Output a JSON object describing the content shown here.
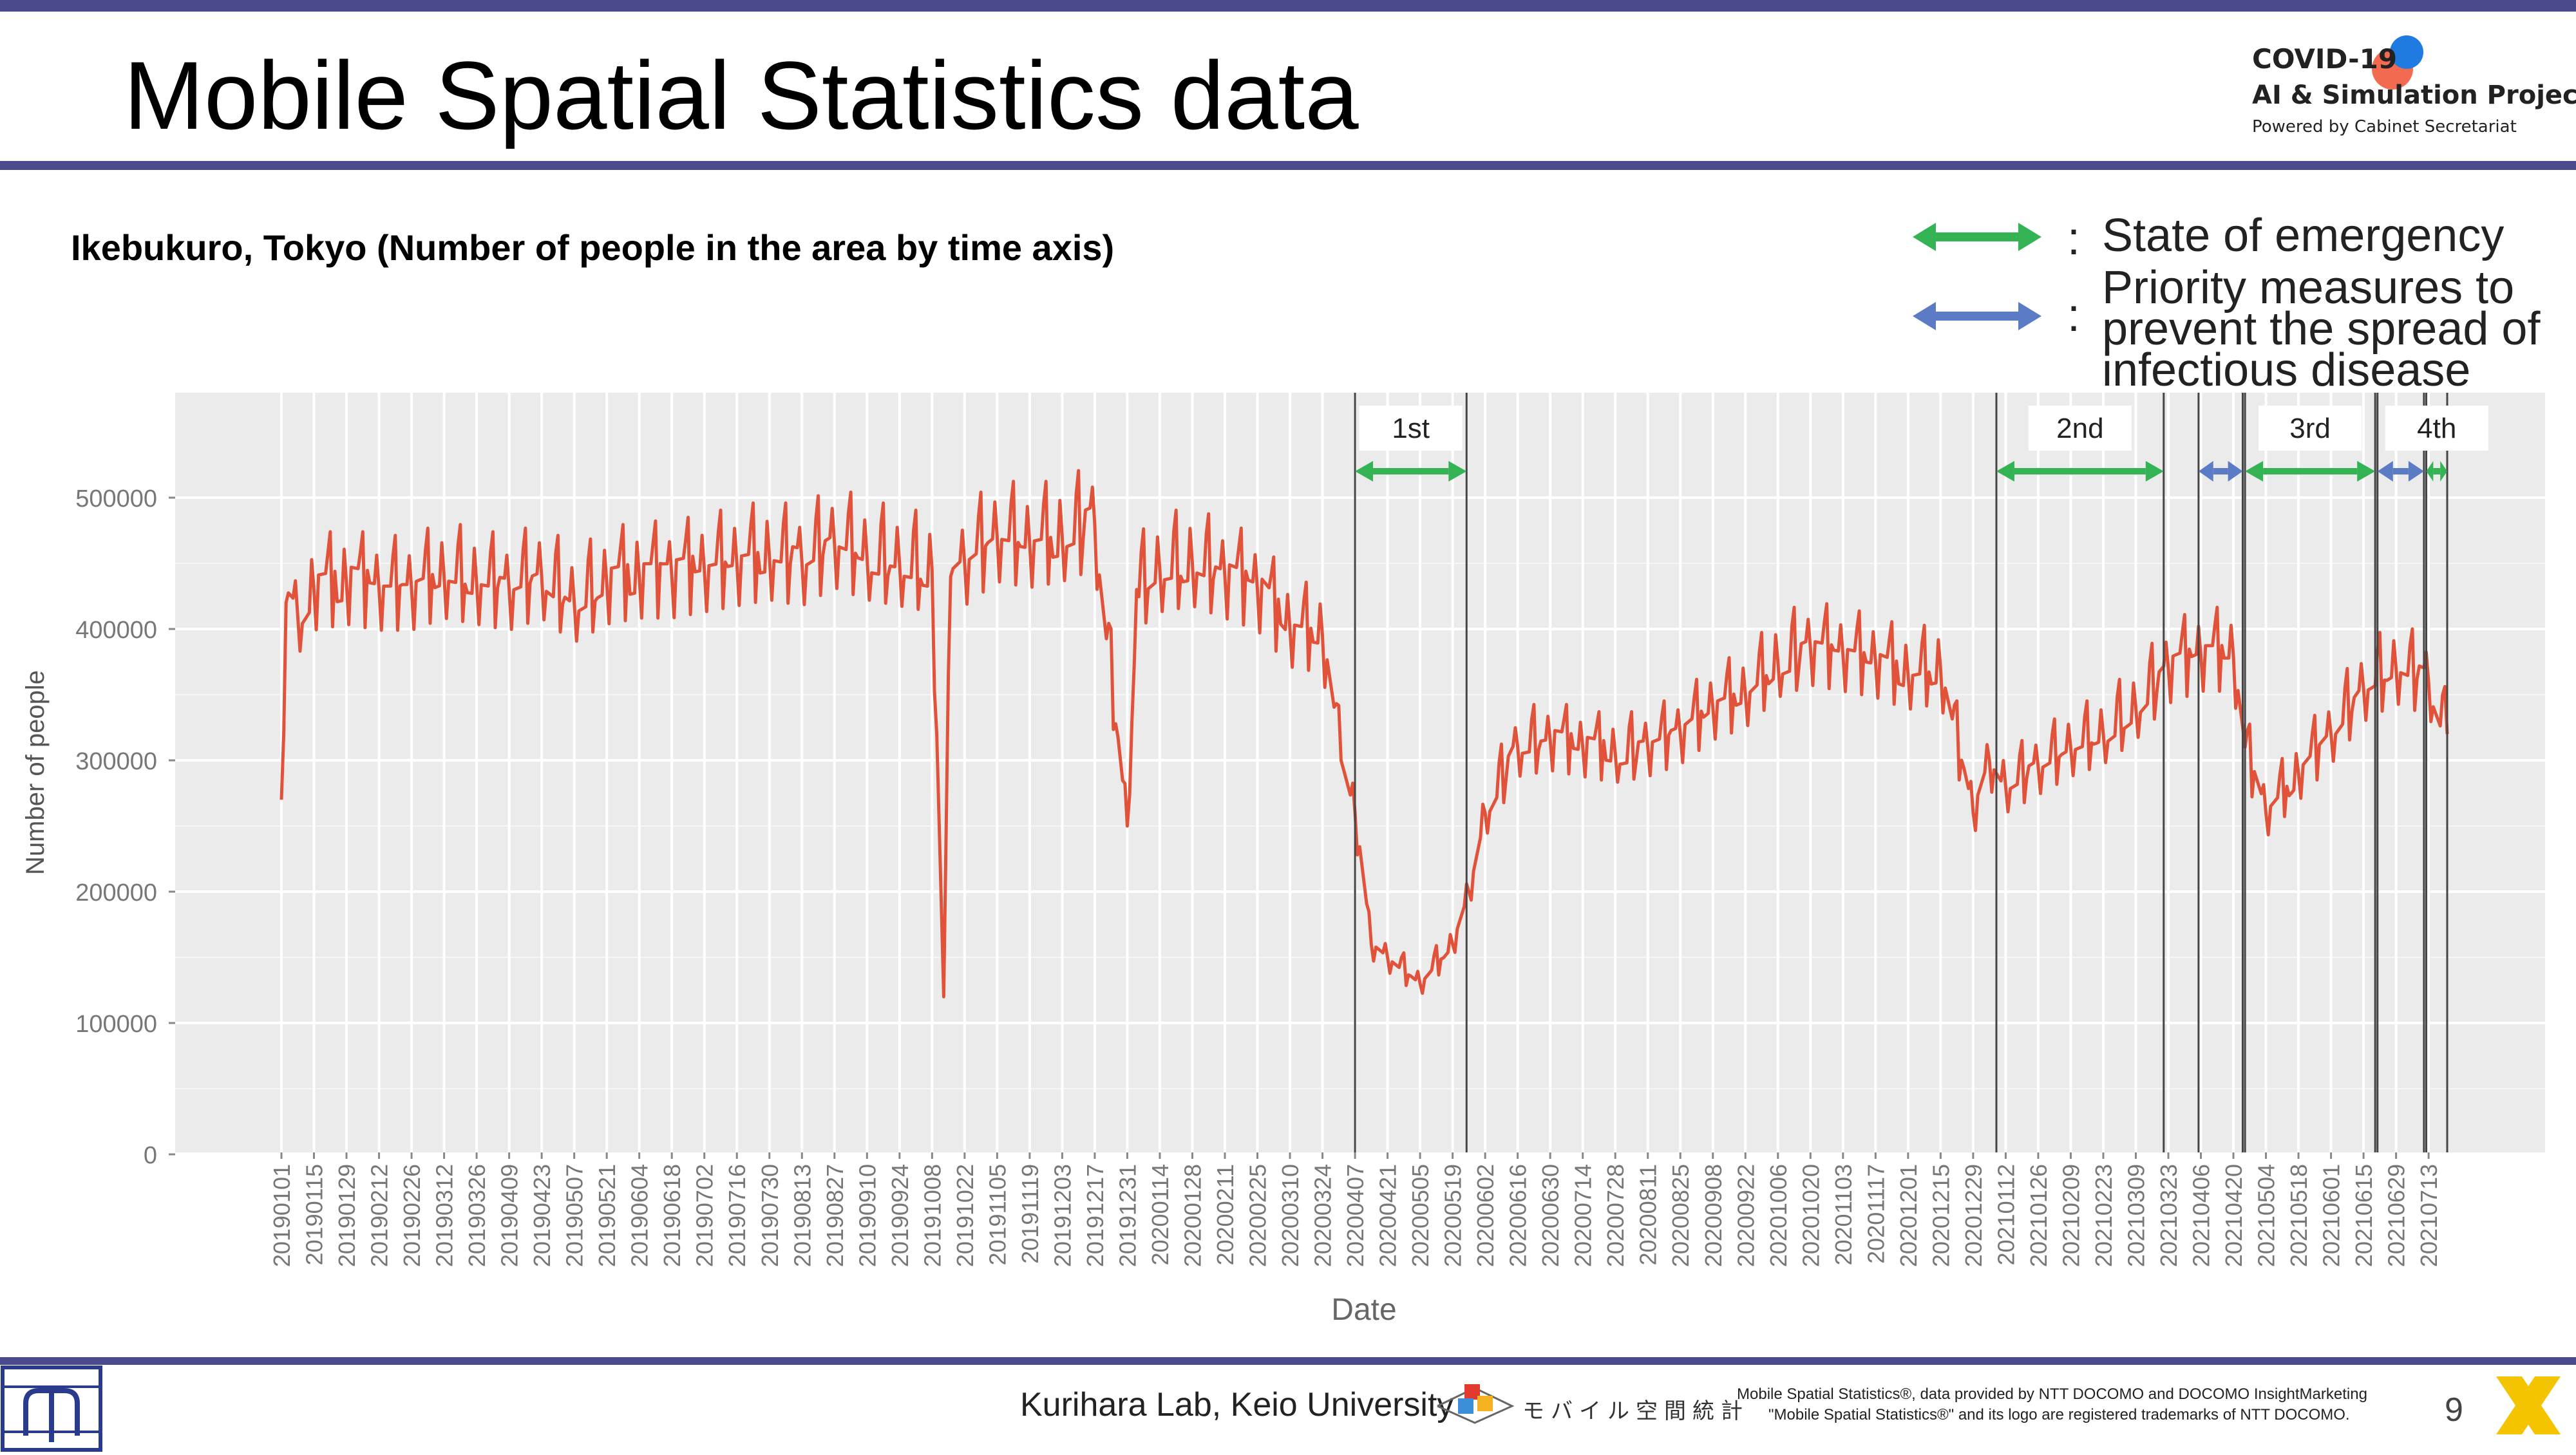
{
  "slide": {
    "title": "Mobile Spatial Statistics data",
    "subtitle": "Ikebukuro, Tokyo (Number of people in the area by time axis)",
    "page_number": "9",
    "footer_credit": "Kurihara Lab, Keio University",
    "footer_brand": "モバイル空間統計",
    "footer_note_line1": "Mobile Spatial Statistics®, data provided by NTT DOCOMO and DOCOMO InsightMarketing",
    "footer_note_line2": "\"Mobile Spatial Statistics®\" and its logo are registered trademarks of NTT DOCOMO.",
    "logo": {
      "line1": "COVID-19",
      "line2": "AI & Simulation Project",
      "line3": "Powered by Cabinet Secretariat"
    },
    "legend": [
      {
        "label": "State of emergency",
        "color": "#34b354"
      },
      {
        "label": "Priority measures to prevent the spread of infectious disease",
        "color": "#5b7cc4"
      }
    ],
    "colors": {
      "band": "#4a4a8c",
      "line": "#e0533a",
      "panel": "#ebebeb",
      "emergency": "#34b354",
      "priority": "#5b7cc4"
    }
  },
  "chart_data": {
    "type": "line",
    "title": "",
    "xlabel": "Date",
    "ylabel": "Number of people",
    "ylim": [
      0,
      575000
    ],
    "yticks": [
      0,
      100000,
      200000,
      300000,
      400000,
      500000
    ],
    "grid": true,
    "x_range": [
      "20190101",
      "20210721"
    ],
    "x_tick_labels": [
      "20190101",
      "20190115",
      "20190129",
      "20190212",
      "20190226",
      "20190312",
      "20190326",
      "20190409",
      "20190423",
      "20190507",
      "20190521",
      "20190604",
      "20190618",
      "20190702",
      "20190716",
      "20190730",
      "20190813",
      "20190827",
      "20190910",
      "20190924",
      "20191008",
      "20191022",
      "20191105",
      "20191119",
      "20191203",
      "20191217",
      "20191231",
      "20200114",
      "20200128",
      "20200211",
      "20200225",
      "20200310",
      "20200324",
      "20200407",
      "20200421",
      "20200505",
      "20200519",
      "20200602",
      "20200616",
      "20200630",
      "20200714",
      "20200728",
      "20200811",
      "20200825",
      "20200908",
      "20200922",
      "20201006",
      "20201020",
      "20201103",
      "20201117",
      "20201201",
      "20201215",
      "20201229",
      "20210112",
      "20210126",
      "20210209",
      "20210223",
      "20210309",
      "20210323",
      "20210406",
      "20210420",
      "20210504",
      "20210518",
      "20210601",
      "20210615",
      "20210629",
      "20210713"
    ],
    "series": [
      {
        "name": "",
        "color": "#e0533a",
        "points": [
          [
            "20190101",
            270000
          ],
          [
            "20190103",
            420000
          ],
          [
            "20190108",
            410000
          ],
          [
            "20190115",
            430000
          ],
          [
            "20190129",
            435000
          ],
          [
            "20190212",
            430000
          ],
          [
            "20190226",
            430000
          ],
          [
            "20190312",
            440000
          ],
          [
            "20190326",
            435000
          ],
          [
            "20190409",
            430000
          ],
          [
            "20190423",
            440000
          ],
          [
            "20190507",
            420000
          ],
          [
            "20190521",
            435000
          ],
          [
            "20190604",
            440000
          ],
          [
            "20190618",
            440000
          ],
          [
            "20190702",
            445000
          ],
          [
            "20190716",
            450000
          ],
          [
            "20190730",
            455000
          ],
          [
            "20190813",
            450000
          ],
          [
            "20190827",
            465000
          ],
          [
            "20190910",
            455000
          ],
          [
            "20190924",
            450000
          ],
          [
            "20191008",
            445000
          ],
          [
            "20191013",
            120000
          ],
          [
            "20191016",
            440000
          ],
          [
            "20191022",
            450000
          ],
          [
            "20191105",
            470000
          ],
          [
            "20191119",
            465000
          ],
          [
            "20191203",
            470000
          ],
          [
            "20191217",
            480000
          ],
          [
            "20191231",
            250000
          ],
          [
            "20200104",
            430000
          ],
          [
            "20200114",
            445000
          ],
          [
            "20200128",
            450000
          ],
          [
            "20200211",
            440000
          ],
          [
            "20200225",
            430000
          ],
          [
            "20200310",
            400000
          ],
          [
            "20200324",
            395000
          ],
          [
            "20200401",
            300000
          ],
          [
            "20200407",
            260000
          ],
          [
            "20200414",
            160000
          ],
          [
            "20200421",
            150000
          ],
          [
            "20200505",
            130000
          ],
          [
            "20200519",
            160000
          ],
          [
            "20200526",
            200000
          ],
          [
            "20200602",
            260000
          ],
          [
            "20200616",
            310000
          ],
          [
            "20200630",
            315000
          ],
          [
            "20200714",
            310000
          ],
          [
            "20200728",
            305000
          ],
          [
            "20200811",
            310000
          ],
          [
            "20200825",
            320000
          ],
          [
            "20200908",
            340000
          ],
          [
            "20200922",
            350000
          ],
          [
            "20201006",
            375000
          ],
          [
            "20201020",
            385000
          ],
          [
            "20201103",
            380000
          ],
          [
            "20201117",
            375000
          ],
          [
            "20201201",
            365000
          ],
          [
            "20201215",
            370000
          ],
          [
            "20201229",
            260000
          ],
          [
            "20210105",
            300000
          ],
          [
            "20210112",
            280000
          ],
          [
            "20210126",
            295000
          ],
          [
            "20210209",
            310000
          ],
          [
            "20210223",
            320000
          ],
          [
            "20210309",
            340000
          ],
          [
            "20210323",
            370000
          ],
          [
            "20210406",
            380000
          ],
          [
            "20210420",
            380000
          ],
          [
            "20210425",
            310000
          ],
          [
            "20210504",
            260000
          ],
          [
            "20210518",
            290000
          ],
          [
            "20210601",
            320000
          ],
          [
            "20210615",
            355000
          ],
          [
            "20210629",
            370000
          ],
          [
            "20210713",
            360000
          ],
          [
            "20210721",
            320000
          ]
        ]
      }
    ],
    "periods": [
      {
        "label": "1st",
        "type": "State of emergency",
        "start": "20200407",
        "end": "20200525"
      },
      {
        "label": "2nd",
        "type": "State of emergency",
        "start": "20210108",
        "end": "20210321"
      },
      {
        "label": "",
        "type": "Priority measures to prevent the spread of infectious disease",
        "start": "20210405",
        "end": "20210424"
      },
      {
        "label": "3rd",
        "type": "State of emergency",
        "start": "20210425",
        "end": "20210620"
      },
      {
        "label": "",
        "type": "Priority measures to prevent the spread of infectious disease",
        "start": "20210621",
        "end": "20210711"
      },
      {
        "label": "4th",
        "type": "State of emergency",
        "start": "20210712",
        "end": "20210721"
      }
    ]
  }
}
